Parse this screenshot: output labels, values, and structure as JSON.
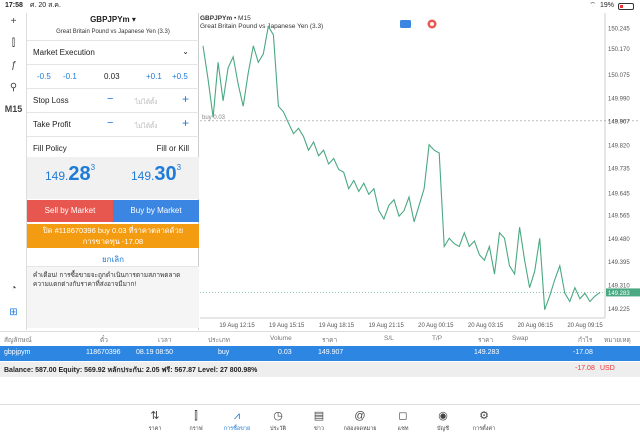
{
  "status_bar": {
    "time": "17:58",
    "date": "ศ. 20 ส.ค.",
    "battery": "19%"
  },
  "toolrail": {
    "items": [
      "+",
      "⫿",
      "ƒ",
      "⚲"
    ],
    "timeframe": "M15"
  },
  "order_panel": {
    "symbol": "GBPJPYm",
    "description": "Great Britain Pound vs Japanese Yen (3.3)",
    "execution": "Market Execution",
    "volume_steps": [
      "-0.5",
      "-0.1",
      "0.03",
      "+0.1",
      "+0.5"
    ],
    "stop_loss": {
      "label": "Stop Loss",
      "value": "ไม่ได้ตั้ง"
    },
    "take_profit": {
      "label": "Take Profit",
      "value": "ไม่ได้ตั้ง"
    },
    "fill_policy": {
      "label": "Fill Policy",
      "value": "Fill or Kill"
    },
    "bid": {
      "prefix": "149.",
      "big": "28",
      "sup": "3"
    },
    "ask": {
      "prefix": "149.",
      "big": "30",
      "sup": "3"
    },
    "sell_label": "Sell by Market",
    "buy_label": "Buy by Market",
    "close_line1": "ปิด #118670396 buy 0.03 ที่ราคาตลาดด้วย",
    "close_line2": "การขาดทุน -17.08",
    "cancel_label": "ยกเลิก",
    "warning": "คำเตือน! การซื้อขายจะถูกดำเนินการตามสภาพตลาด ความแตกต่างกับราคาที่ส่งอาจมีมาก!"
  },
  "chart_header": {
    "symbol": "GBPJPYm",
    "timeframe": "M15",
    "description": "Great Britain Pound vs Japanese Yen (3.3)"
  },
  "chart_data": {
    "type": "line",
    "x_ticks": [
      "19 Aug 12:15",
      "19 Aug 15:15",
      "19 Aug 18:15",
      "19 Aug 21:15",
      "20 Aug 00:15",
      "20 Aug 03:15",
      "20 Aug 06:15",
      "20 Aug 09:15"
    ],
    "y_ticks": [
      "150.245",
      "150.170",
      "150.075",
      "149.990",
      "149.907",
      "149.820",
      "149.735",
      "149.645",
      "149.565",
      "149.480",
      "149.395",
      "149.310",
      "149.283",
      "149.225"
    ],
    "ylim": [
      149.19,
      150.27
    ],
    "position_line": {
      "label": "buy 0.03",
      "value": 149.907
    },
    "current_price": 149.283,
    "values": [
      150.18,
      150.06,
      149.92,
      150.12,
      149.98,
      150.1,
      150.14,
      150.04,
      149.96,
      150.08,
      150.18,
      150.12,
      150.15,
      150.25,
      150.22,
      149.96,
      149.94,
      149.9,
      149.86,
      149.88,
      149.85,
      149.8,
      149.83,
      149.78,
      149.8,
      149.75,
      149.77,
      149.73,
      149.72,
      149.66,
      149.69,
      149.65,
      149.68,
      149.64,
      149.66,
      149.58,
      149.55,
      149.6,
      149.62,
      149.56,
      149.58,
      149.63,
      149.54,
      149.6,
      149.66,
      149.82,
      149.8,
      149.79,
      149.45,
      149.48,
      149.46,
      149.45,
      149.5,
      149.45,
      149.47,
      149.42,
      149.4,
      149.45,
      149.35,
      149.5,
      149.48,
      149.38,
      149.35,
      149.52,
      149.4,
      149.3,
      149.36,
      149.48,
      149.22,
      149.27,
      149.33,
      149.38,
      149.28,
      149.25,
      149.3,
      149.26,
      149.28,
      149.25,
      149.27,
      149.283
    ],
    "line_color": "#4aa882"
  },
  "table": {
    "headers": [
      "สัญลักษณ์",
      "ตั๋ว",
      "เวลา",
      "ประเภท",
      "Volume",
      "ราคา",
      "S/L",
      "T/P",
      "ราคา",
      "Swap",
      "กำไร",
      "หมายเหตุ"
    ],
    "row": {
      "symbol": "gbpjpym",
      "ticket": "118670396",
      "time": "08.19 08:50",
      "type": "buy",
      "volume": "0.03",
      "open_price": "149.907",
      "price": "149.283",
      "profit": "-17.08"
    }
  },
  "balance": {
    "text": "Balance: 587.00 Equity: 569.92 หลักประกัน: 2.05 ฟรี: 567.87 Level: 27 800.98%",
    "profit": "-17.08",
    "currency": "USD"
  },
  "tabs": [
    {
      "label": "ราคา",
      "icon": "⇅"
    },
    {
      "label": "กราฟ",
      "icon": "⫿"
    },
    {
      "label": "การซื้อขาย",
      "icon": "⩘"
    },
    {
      "label": "ประวัติ",
      "icon": "◷"
    },
    {
      "label": "ข่าว",
      "icon": "▤"
    },
    {
      "label": "กล่องจดหมาย",
      "icon": "@"
    },
    {
      "label": "แชท",
      "icon": "◻"
    },
    {
      "label": "บัญชี",
      "icon": "◉"
    },
    {
      "label": "การตั้งค่า",
      "icon": "⚙"
    }
  ],
  "colors": {
    "accent": "#1e7bd7",
    "sell": "#e8574f",
    "buy": "#3b86e3",
    "close": "#f39c12",
    "loss": "#e33333"
  }
}
